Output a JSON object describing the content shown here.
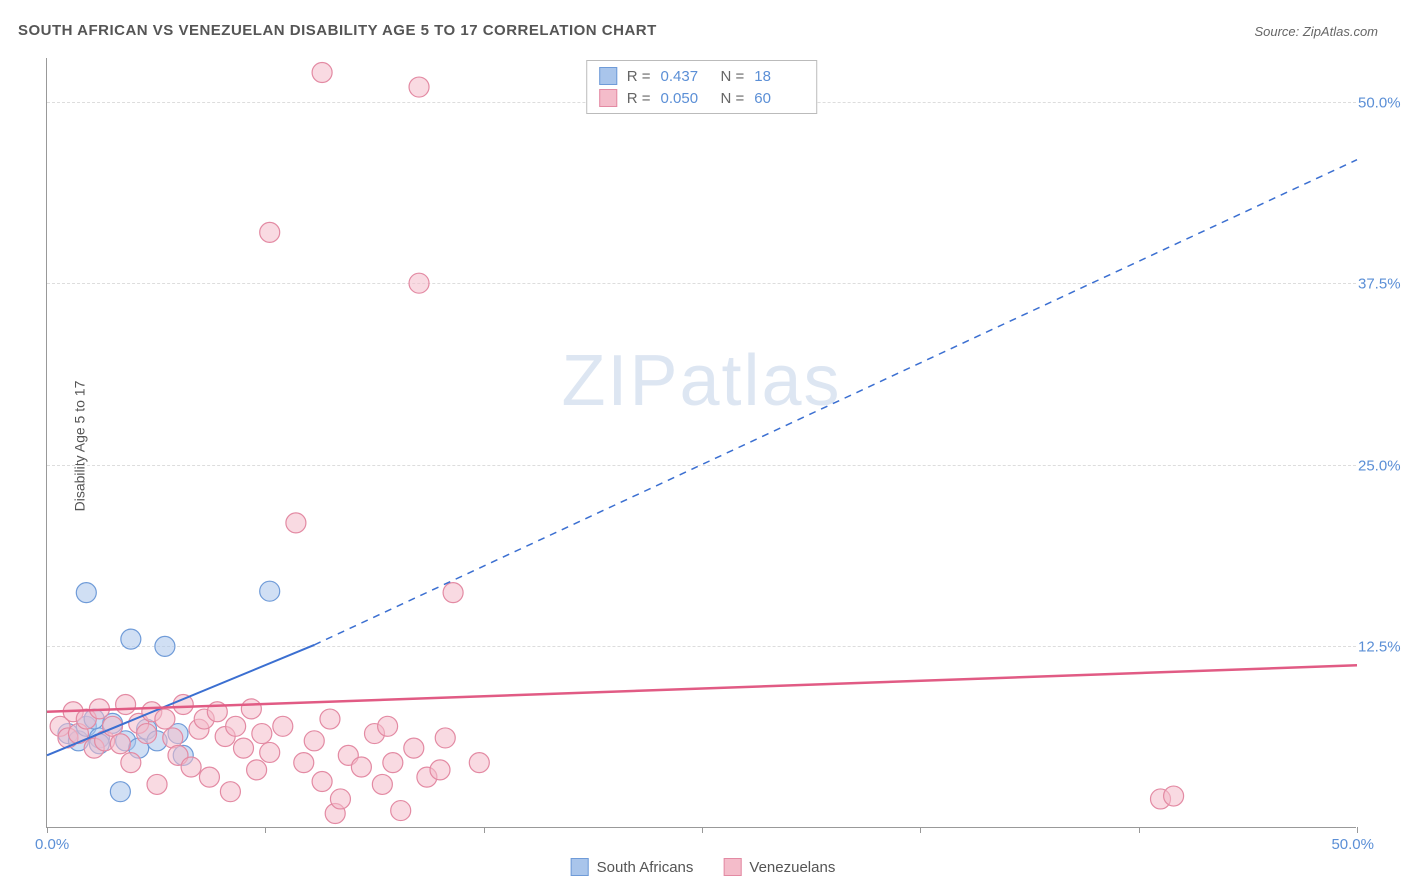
{
  "title": "SOUTH AFRICAN VS VENEZUELAN DISABILITY AGE 5 TO 17 CORRELATION CHART",
  "source": "Source: ZipAtlas.com",
  "y_axis_label": "Disability Age 5 to 17",
  "watermark": "ZIPatlas",
  "chart": {
    "type": "scatter",
    "xlim": [
      0,
      50
    ],
    "ylim": [
      0,
      53
    ],
    "grid_color": "#dddddd",
    "axis_color": "#999999",
    "background": "#ffffff",
    "y_ticks": [
      12.5,
      25.0,
      37.5,
      50.0
    ],
    "y_tick_labels": [
      "12.5%",
      "25.0%",
      "37.5%",
      "50.0%"
    ],
    "x_ticks": [
      0,
      8.33,
      16.67,
      25,
      33.33,
      41.67,
      50
    ],
    "x_label_start": "0.0%",
    "x_label_end": "50.0%",
    "tick_label_color": "#5b8fd6",
    "marker_radius": 10,
    "series": [
      {
        "name": "South Africans",
        "color_fill": "#a9c5eb",
        "color_stroke": "#6f9bd8",
        "fill_opacity": 0.55,
        "points": [
          [
            0.8,
            6.5
          ],
          [
            1.2,
            6.0
          ],
          [
            1.5,
            7.0
          ],
          [
            2.0,
            6.2
          ],
          [
            2.5,
            7.2
          ],
          [
            3.0,
            6.0
          ],
          [
            3.2,
            13.0
          ],
          [
            3.5,
            5.5
          ],
          [
            3.8,
            6.8
          ],
          [
            1.5,
            16.2
          ],
          [
            4.5,
            12.5
          ],
          [
            5.0,
            6.5
          ],
          [
            5.2,
            5.0
          ],
          [
            2.0,
            5.8
          ],
          [
            8.5,
            16.3
          ],
          [
            1.8,
            7.5
          ],
          [
            4.2,
            6.0
          ],
          [
            2.8,
            2.5
          ]
        ],
        "trend": {
          "x1": 0,
          "y1": 5.0,
          "x2": 10.2,
          "y2": 12.6,
          "dash_x2": 50,
          "dash_y2": 46.0,
          "stroke": "#3b6fd1",
          "width": 2
        },
        "R": "0.437",
        "N": "18"
      },
      {
        "name": "Venezuelans",
        "color_fill": "#f4bcca",
        "color_stroke": "#e38aa3",
        "fill_opacity": 0.55,
        "points": [
          [
            0.5,
            7.0
          ],
          [
            0.8,
            6.2
          ],
          [
            1.0,
            8.0
          ],
          [
            1.2,
            6.5
          ],
          [
            1.5,
            7.5
          ],
          [
            1.8,
            5.5
          ],
          [
            2.0,
            8.2
          ],
          [
            2.2,
            6.0
          ],
          [
            2.5,
            7.0
          ],
          [
            2.8,
            5.8
          ],
          [
            3.0,
            8.5
          ],
          [
            3.2,
            4.5
          ],
          [
            3.5,
            7.2
          ],
          [
            3.8,
            6.5
          ],
          [
            4.0,
            8.0
          ],
          [
            4.2,
            3.0
          ],
          [
            4.5,
            7.5
          ],
          [
            4.8,
            6.2
          ],
          [
            5.0,
            5.0
          ],
          [
            5.2,
            8.5
          ],
          [
            5.5,
            4.2
          ],
          [
            5.8,
            6.8
          ],
          [
            6.0,
            7.5
          ],
          [
            6.2,
            3.5
          ],
          [
            6.5,
            8.0
          ],
          [
            6.8,
            6.3
          ],
          [
            7.0,
            2.5
          ],
          [
            7.2,
            7.0
          ],
          [
            7.5,
            5.5
          ],
          [
            7.8,
            8.2
          ],
          [
            8.0,
            4.0
          ],
          [
            8.2,
            6.5
          ],
          [
            8.5,
            5.2
          ],
          [
            9.0,
            7.0
          ],
          [
            9.5,
            21.0
          ],
          [
            9.8,
            4.5
          ],
          [
            10.2,
            6.0
          ],
          [
            10.5,
            3.2
          ],
          [
            10.8,
            7.5
          ],
          [
            11.0,
            1.0
          ],
          [
            11.2,
            2.0
          ],
          [
            11.5,
            5.0
          ],
          [
            12.0,
            4.2
          ],
          [
            12.5,
            6.5
          ],
          [
            12.8,
            3.0
          ],
          [
            13.0,
            7.0
          ],
          [
            13.2,
            4.5
          ],
          [
            13.5,
            1.2
          ],
          [
            14.0,
            5.5
          ],
          [
            14.5,
            3.5
          ],
          [
            15.0,
            4.0
          ],
          [
            15.2,
            6.2
          ],
          [
            15.5,
            16.2
          ],
          [
            10.5,
            52.0
          ],
          [
            14.2,
            51.0
          ],
          [
            8.5,
            41.0
          ],
          [
            14.2,
            37.5
          ],
          [
            42.5,
            2.0
          ],
          [
            43.0,
            2.2
          ],
          [
            16.5,
            4.5
          ]
        ],
        "trend": {
          "x1": 0,
          "y1": 8.0,
          "x2": 50,
          "y2": 11.2,
          "stroke": "#e15b84",
          "width": 2.5
        },
        "R": "0.050",
        "N": "60"
      }
    ]
  },
  "stats_box": {
    "rows": [
      {
        "swatch_fill": "#a9c5eb",
        "swatch_stroke": "#6f9bd8",
        "R_label": "R =",
        "R": "0.437",
        "N_label": "N =",
        "N": "18"
      },
      {
        "swatch_fill": "#f4bcca",
        "swatch_stroke": "#e38aa3",
        "R_label": "R =",
        "R": "0.050",
        "N_label": "N =",
        "N": "60"
      }
    ]
  },
  "bottom_legend": [
    {
      "swatch_fill": "#a9c5eb",
      "swatch_stroke": "#6f9bd8",
      "label": "South Africans"
    },
    {
      "swatch_fill": "#f4bcca",
      "swatch_stroke": "#e38aa3",
      "label": "Venezuelans"
    }
  ]
}
